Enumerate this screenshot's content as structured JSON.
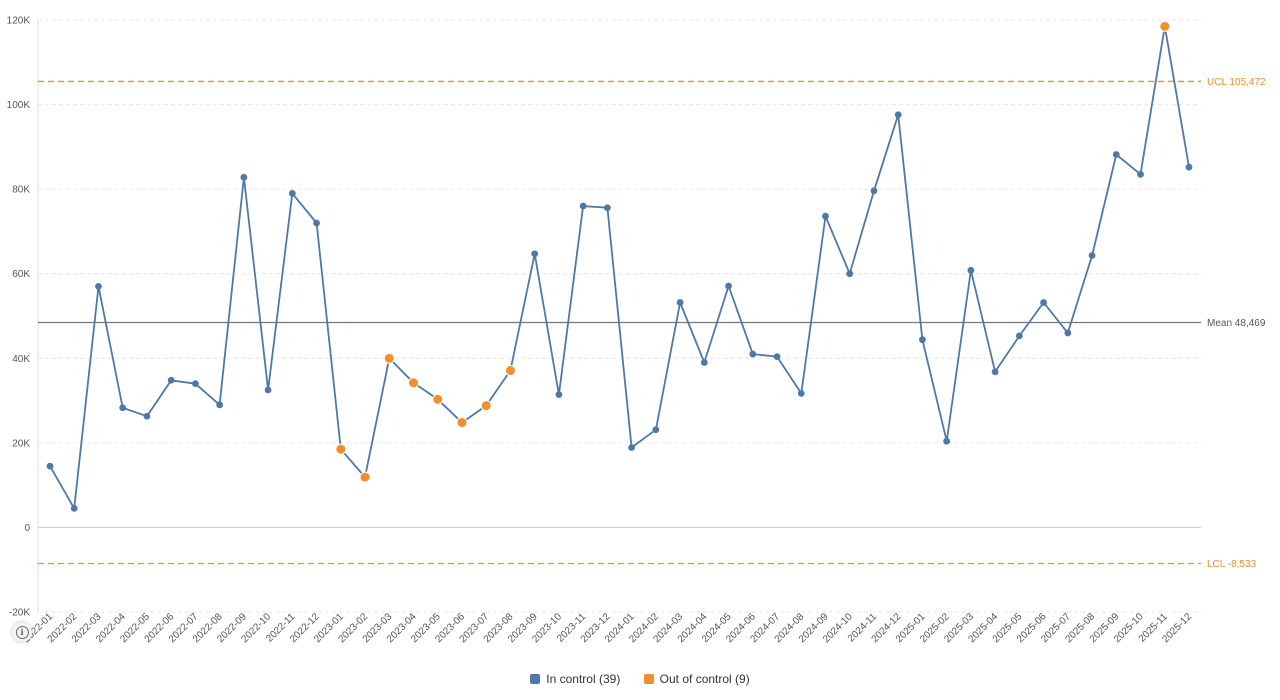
{
  "chart_data": {
    "type": "line",
    "title": "",
    "xlabel": "",
    "ylabel": "",
    "ylim": [
      -20000,
      120000
    ],
    "yticks": [
      -20000,
      0,
      20000,
      40000,
      60000,
      80000,
      100000,
      120000
    ],
    "ytick_labels": [
      "-20K",
      "0",
      "20K",
      "40K",
      "60K",
      "80K",
      "100K",
      "120K"
    ],
    "grid": "horizontal dashed",
    "legend_position": "bottom-center",
    "colors": {
      "in_control": "#4e79a7",
      "out_of_control": "#f28e2b",
      "mean_line": "#777777",
      "limit_line": "#f28e2b"
    },
    "categories": [
      "2022-01",
      "2022-02",
      "2022-03",
      "2022-04",
      "2022-05",
      "2022-06",
      "2022-07",
      "2022-08",
      "2022-09",
      "2022-10",
      "2022-11",
      "2022-12",
      "2023-01",
      "2023-02",
      "2023-03",
      "2023-04",
      "2023-05",
      "2023-06",
      "2023-07",
      "2023-08",
      "2023-09",
      "2023-10",
      "2023-11",
      "2023-12",
      "2024-01",
      "2024-02",
      "2024-03",
      "2024-04",
      "2024-05",
      "2024-06",
      "2024-07",
      "2024-08",
      "2024-09",
      "2024-10",
      "2024-11",
      "2024-12",
      "2025-01",
      "2025-02",
      "2025-03",
      "2025-04",
      "2025-05",
      "2025-06",
      "2025-07",
      "2025-08",
      "2025-09",
      "2025-10",
      "2025-11",
      "2025-12"
    ],
    "values": [
      14500,
      4500,
      57000,
      28300,
      26300,
      34800,
      34000,
      29000,
      82800,
      32500,
      79000,
      72000,
      18500,
      11900,
      40000,
      34200,
      30300,
      24800,
      28800,
      37100,
      64700,
      31400,
      76000,
      75600,
      18900,
      23100,
      53200,
      39000,
      57100,
      41000,
      40400,
      31700,
      73600,
      60000,
      79600,
      97600,
      44400,
      20400,
      60800,
      36800,
      45300,
      53200,
      46000,
      64300,
      88200,
      83500,
      118500,
      85200
    ],
    "status": [
      "in",
      "in",
      "in",
      "in",
      "in",
      "in",
      "in",
      "in",
      "in",
      "in",
      "in",
      "in",
      "out",
      "out",
      "out",
      "out",
      "out",
      "out",
      "out",
      "out",
      "in",
      "in",
      "in",
      "in",
      "in",
      "in",
      "in",
      "in",
      "in",
      "in",
      "in",
      "in",
      "in",
      "in",
      "in",
      "in",
      "in",
      "in",
      "in",
      "in",
      "in",
      "in",
      "in",
      "in",
      "in",
      "in",
      "out",
      "in"
    ],
    "mean": 48469,
    "ucl": 105472,
    "lcl": -8533,
    "mean_label": "Mean 48,469",
    "ucl_label": "UCL 105,472",
    "lcl_label": "LCL -8,533",
    "legend": [
      {
        "key": "in",
        "label": "In control (39)",
        "color": "#4e79a7"
      },
      {
        "key": "out",
        "label": "Out of control (9)",
        "color": "#f28e2b"
      }
    ]
  },
  "info_icon": "info-icon"
}
